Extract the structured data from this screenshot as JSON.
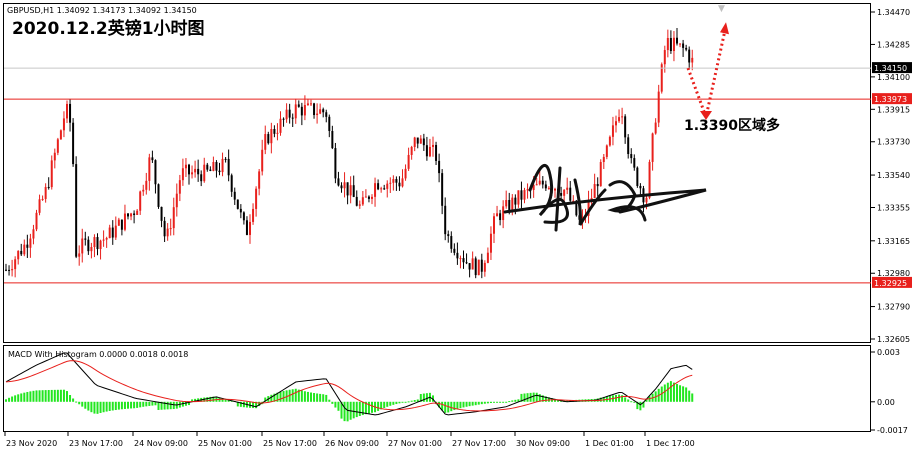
{
  "header": {
    "symbol_line": "GBPUSD,H1  1.34092 1.34173 1.34092 1.34150",
    "title": "2020.12.2英镑1小时图"
  },
  "annotation": {
    "text": "1.3390区域多",
    "signature": "签名"
  },
  "colors": {
    "bull": "#e8201c",
    "bear": "#000000",
    "hline": "#e8201c",
    "macd_hist": "#22e61f",
    "macd_main": "#000000",
    "macd_signal": "#e8201c",
    "arrow": "#e8201c",
    "price_tag": "#e8201c"
  },
  "chart_data": [
    {
      "type": "candlestick",
      "title": "GBPUSD,H1",
      "y_ticks": [
        "1.34470",
        "1.34285",
        "1.34100",
        "1.33915",
        "1.33730",
        "1.33540",
        "1.33355",
        "1.33165",
        "1.32980",
        "1.32790",
        "1.32605"
      ],
      "ylim": [
        1.32605,
        1.3447
      ],
      "current_price_label": "1.34150",
      "current_price": 1.3415,
      "horizontal_lines": [
        {
          "label": "1.33973",
          "value": 1.33973
        },
        {
          "label": "1.32925",
          "value": 1.32925
        }
      ],
      "x_tick_labels": [
        "23 Nov 2020",
        "23 Nov 17:00",
        "24 Nov 09:00",
        "25 Nov 01:00",
        "25 Nov 17:00",
        "26 Nov 09:00",
        "27 Nov 01:00",
        "27 Nov 17:00",
        "30 Nov 09:00",
        "1 Dec 01:00",
        "1 Dec 17:00"
      ],
      "forecast": {
        "low": 1.339,
        "target": 1.344
      }
    },
    {
      "type": "line",
      "title": "MACD With Histogram 0.0000 0.0018 0.0018",
      "y_ticks": [
        "0.003",
        "0.00",
        "-0.0017"
      ],
      "ylim": [
        -0.0017,
        0.003
      ],
      "series": [
        {
          "name": "MACD"
        },
        {
          "name": "Signal"
        },
        {
          "name": "Histogram"
        }
      ]
    }
  ]
}
